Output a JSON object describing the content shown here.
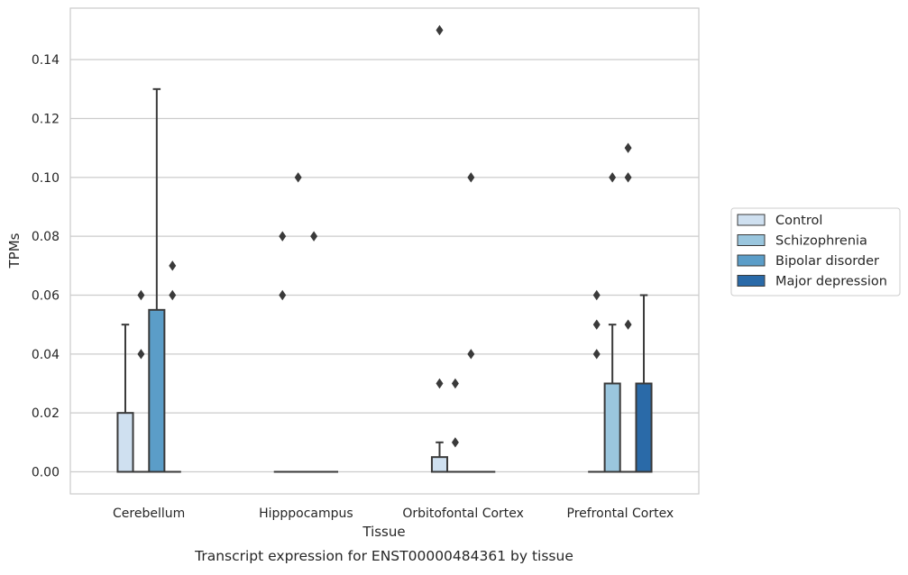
{
  "chart_data": {
    "type": "boxplot",
    "title": "",
    "caption": "Transcript expression for ENST00000484361 by tissue",
    "xlabel": "Tissue",
    "ylabel": "TPMs",
    "ylim": [
      -0.0075,
      0.1575
    ],
    "yticks": [
      0.0,
      0.02,
      0.04,
      0.06,
      0.08,
      0.1,
      0.12,
      0.14
    ],
    "ytick_labels": [
      "0.00",
      "0.02",
      "0.04",
      "0.06",
      "0.08",
      "0.10",
      "0.12",
      "0.14"
    ],
    "grid": true,
    "legend_position": "right",
    "categories": [
      "Cerebellum",
      "Hipppocampus",
      "Orbitofontal Cortex",
      "Prefrontal Cortex"
    ],
    "series": [
      {
        "name": "Control",
        "color": "#cfe0f0",
        "boxes": [
          {
            "q1": 0,
            "median": 0,
            "q3": 0.02,
            "whisker_low": 0,
            "whisker_high": 0.05,
            "outliers": []
          },
          {
            "q1": 0,
            "median": 0,
            "q3": 0,
            "whisker_low": 0,
            "whisker_high": 0,
            "outliers": [
              0.06,
              0.08
            ]
          },
          {
            "q1": 0,
            "median": 0,
            "q3": 0.005,
            "whisker_low": 0,
            "whisker_high": 0.01,
            "outliers": [
              0.03,
              0.15
            ]
          },
          {
            "q1": 0,
            "median": 0,
            "q3": 0,
            "whisker_low": 0,
            "whisker_high": 0,
            "outliers": [
              0.04,
              0.05,
              0.06
            ]
          }
        ]
      },
      {
        "name": "Schizophrenia",
        "color": "#9ac6de",
        "boxes": [
          {
            "q1": 0,
            "median": 0,
            "q3": 0,
            "whisker_low": 0,
            "whisker_high": 0,
            "outliers": [
              0.04,
              0.06
            ]
          },
          {
            "q1": 0,
            "median": 0,
            "q3": 0,
            "whisker_low": 0,
            "whisker_high": 0,
            "outliers": [
              0.1
            ]
          },
          {
            "q1": 0,
            "median": 0,
            "q3": 0,
            "whisker_low": 0,
            "whisker_high": 0,
            "outliers": [
              0.01,
              0.03
            ]
          },
          {
            "q1": 0,
            "median": 0,
            "q3": 0.03,
            "whisker_low": 0,
            "whisker_high": 0.05,
            "outliers": [
              0.1
            ]
          }
        ]
      },
      {
        "name": "Bipolar disorder",
        "color": "#5b9dc8",
        "boxes": [
          {
            "q1": 0,
            "median": 0,
            "q3": 0.055,
            "whisker_low": 0,
            "whisker_high": 0.13,
            "outliers": []
          },
          {
            "q1": 0,
            "median": 0,
            "q3": 0,
            "whisker_low": 0,
            "whisker_high": 0,
            "outliers": [
              0.08
            ]
          },
          {
            "q1": 0,
            "median": 0,
            "q3": 0,
            "whisker_low": 0,
            "whisker_high": 0,
            "outliers": [
              0.04,
              0.1
            ]
          },
          {
            "q1": 0,
            "median": 0,
            "q3": 0,
            "whisker_low": 0,
            "whisker_high": 0,
            "outliers": [
              0.05,
              0.1,
              0.11
            ]
          }
        ]
      },
      {
        "name": "Major depression",
        "color": "#2a6aa8",
        "boxes": [
          {
            "q1": 0,
            "median": 0,
            "q3": 0,
            "whisker_low": 0,
            "whisker_high": 0,
            "outliers": [
              0.06,
              0.07
            ]
          },
          {
            "q1": 0,
            "median": 0,
            "q3": 0,
            "whisker_low": 0,
            "whisker_high": 0,
            "outliers": []
          },
          {
            "q1": 0,
            "median": 0,
            "q3": 0,
            "whisker_low": 0,
            "whisker_high": 0,
            "outliers": []
          },
          {
            "q1": 0,
            "median": 0,
            "q3": 0.03,
            "whisker_low": 0,
            "whisker_high": 0.06,
            "outliers": []
          }
        ]
      }
    ]
  }
}
